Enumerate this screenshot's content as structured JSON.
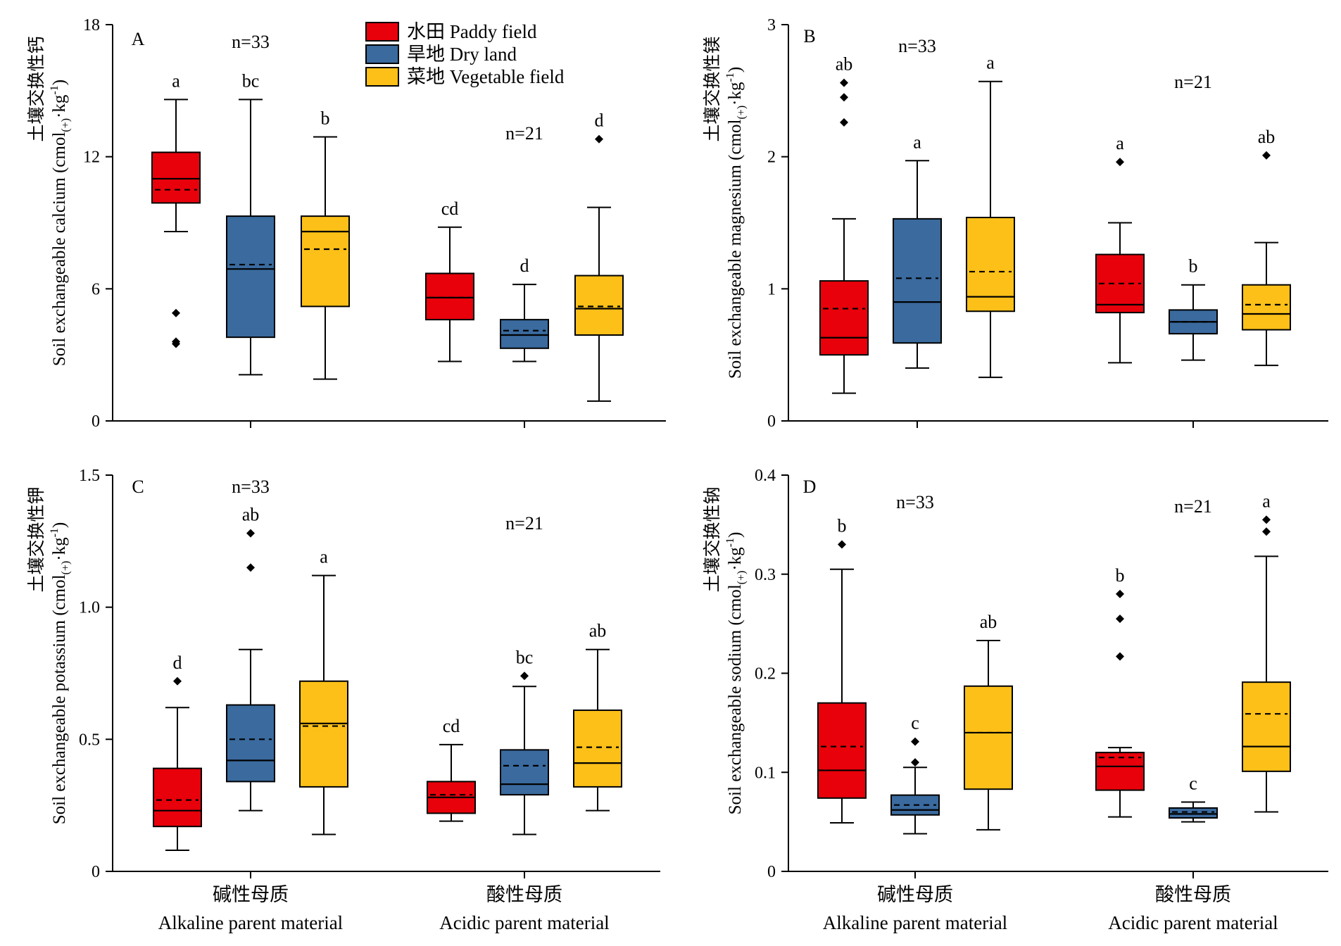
{
  "colors": {
    "paddy": "#e8000b",
    "dry": "#3a6a9e",
    "vegetable": "#fcc018"
  },
  "legend": [
    {
      "key": "paddy",
      "label": "水田 Paddy field"
    },
    {
      "key": "dry",
      "label": "旱地 Dry land"
    },
    {
      "key": "vegetable",
      "label": "菜地 Vegetable field"
    }
  ],
  "x_categories": [
    {
      "zh": "碱性母质",
      "en": "Alkaline parent material"
    },
    {
      "zh": "酸性母质",
      "en": "Acidic parent material"
    }
  ],
  "chart_data": [
    {
      "type": "box",
      "panel": "A",
      "ylabel_zh": "土壤交换性钙",
      "ylabel_en": "Soil exchangeable calcium",
      "ylim": [
        0,
        18
      ],
      "yticks": [
        "0",
        "6",
        "12",
        "18"
      ],
      "groups": [
        {
          "n_label": "n=33",
          "boxes": [
            {
              "series": "paddy",
              "min": 8.6,
              "q1": 9.9,
              "median": 11.0,
              "mean": 10.5,
              "q3": 12.2,
              "max": 14.6,
              "outliers": [
                4.9,
                3.6,
                3.5
              ],
              "letter": "a"
            },
            {
              "series": "dry",
              "min": 2.1,
              "q1": 3.8,
              "median": 6.9,
              "mean": 7.1,
              "q3": 9.3,
              "max": 14.6,
              "outliers": [],
              "letter": "bc"
            },
            {
              "series": "vegetable",
              "min": 1.9,
              "q1": 5.2,
              "median": 8.6,
              "mean": 7.8,
              "q3": 9.3,
              "max": 12.9,
              "outliers": [],
              "letter": "b"
            }
          ]
        },
        {
          "n_label": "n=21",
          "boxes": [
            {
              "series": "paddy",
              "min": 2.7,
              "q1": 4.6,
              "median": 5.6,
              "mean": 5.6,
              "q3": 6.7,
              "max": 8.8,
              "outliers": [],
              "letter": "cd"
            },
            {
              "series": "dry",
              "min": 2.7,
              "q1": 3.3,
              "median": 3.9,
              "mean": 4.1,
              "q3": 4.6,
              "max": 6.2,
              "outliers": [],
              "letter": "d"
            },
            {
              "series": "vegetable",
              "min": 0.9,
              "q1": 3.9,
              "median": 5.1,
              "mean": 5.2,
              "q3": 6.6,
              "max": 9.7,
              "outliers": [
                12.8
              ],
              "letter": "d"
            }
          ]
        }
      ]
    },
    {
      "type": "box",
      "panel": "B",
      "ylabel_zh": "土壤交换性镁",
      "ylabel_en": "Soil exchangeable magnesium",
      "ylim": [
        0,
        3
      ],
      "yticks": [
        "0",
        "1",
        "2",
        "3"
      ],
      "groups": [
        {
          "n_label": "n=33",
          "boxes": [
            {
              "series": "paddy",
              "min": 0.21,
              "q1": 0.5,
              "median": 0.63,
              "mean": 0.85,
              "q3": 1.06,
              "max": 1.53,
              "outliers": [
                2.26,
                2.45,
                2.56
              ],
              "letter": "ab"
            },
            {
              "series": "dry",
              "min": 0.4,
              "q1": 0.59,
              "median": 0.9,
              "mean": 1.08,
              "q3": 1.53,
              "max": 1.97,
              "outliers": [],
              "letter": "a"
            },
            {
              "series": "vegetable",
              "min": 0.33,
              "q1": 0.83,
              "median": 0.94,
              "mean": 1.13,
              "q3": 1.54,
              "max": 2.57,
              "outliers": [],
              "letter": "a"
            }
          ]
        },
        {
          "n_label": "n=21",
          "boxes": [
            {
              "series": "paddy",
              "min": 0.44,
              "q1": 0.82,
              "median": 0.88,
              "mean": 1.04,
              "q3": 1.26,
              "max": 1.5,
              "outliers": [
                1.96
              ],
              "letter": "a"
            },
            {
              "series": "dry",
              "min": 0.46,
              "q1": 0.66,
              "median": 0.75,
              "mean": 0.75,
              "q3": 0.84,
              "max": 1.03,
              "outliers": [],
              "letter": "b"
            },
            {
              "series": "vegetable",
              "min": 0.42,
              "q1": 0.69,
              "median": 0.81,
              "mean": 0.88,
              "q3": 1.03,
              "max": 1.35,
              "outliers": [
                2.01
              ],
              "letter": "ab"
            }
          ]
        }
      ]
    },
    {
      "type": "box",
      "panel": "C",
      "ylabel_zh": "土壤交换性钾",
      "ylabel_en": "Soil exchangeable potassium",
      "ylim": [
        0,
        1.5
      ],
      "yticks": [
        "0",
        "0.5",
        "1.0",
        "1.5"
      ],
      "groups": [
        {
          "n_label": "n=33",
          "boxes": [
            {
              "series": "paddy",
              "min": 0.08,
              "q1": 0.17,
              "median": 0.23,
              "mean": 0.27,
              "q3": 0.39,
              "max": 0.62,
              "outliers": [
                0.72
              ],
              "letter": "d"
            },
            {
              "series": "dry",
              "min": 0.23,
              "q1": 0.34,
              "median": 0.42,
              "mean": 0.5,
              "q3": 0.63,
              "max": 0.84,
              "outliers": [
                1.15,
                1.28
              ],
              "letter": "ab"
            },
            {
              "series": "vegetable",
              "min": 0.14,
              "q1": 0.32,
              "median": 0.56,
              "mean": 0.55,
              "q3": 0.72,
              "max": 1.12,
              "outliers": [],
              "letter": "a"
            }
          ]
        },
        {
          "n_label": "n=21",
          "boxes": [
            {
              "series": "paddy",
              "min": 0.19,
              "q1": 0.22,
              "median": 0.28,
              "mean": 0.29,
              "q3": 0.34,
              "max": 0.48,
              "outliers": [],
              "letter": "cd"
            },
            {
              "series": "dry",
              "min": 0.14,
              "q1": 0.29,
              "median": 0.33,
              "mean": 0.4,
              "q3": 0.46,
              "max": 0.7,
              "outliers": [
                0.74
              ],
              "letter": "bc"
            },
            {
              "series": "vegetable",
              "min": 0.23,
              "q1": 0.32,
              "median": 0.41,
              "mean": 0.47,
              "q3": 0.61,
              "max": 0.84,
              "outliers": [],
              "letter": "ab"
            }
          ]
        }
      ]
    },
    {
      "type": "box",
      "panel": "D",
      "ylabel_zh": "土壤交换性钠",
      "ylabel_en": "Soil exchangeable sodium",
      "ylim": [
        0,
        0.4
      ],
      "yticks": [
        "0",
        "0.1",
        "0.2",
        "0.3",
        "0.4"
      ],
      "groups": [
        {
          "n_label": "n=33",
          "boxes": [
            {
              "series": "paddy",
              "min": 0.049,
              "q1": 0.074,
              "median": 0.102,
              "mean": 0.126,
              "q3": 0.17,
              "max": 0.305,
              "outliers": [
                0.33
              ],
              "letter": "b"
            },
            {
              "series": "dry",
              "min": 0.038,
              "q1": 0.057,
              "median": 0.062,
              "mean": 0.067,
              "q3": 0.077,
              "max": 0.105,
              "outliers": [
                0.11,
                0.131
              ],
              "letter": "c"
            },
            {
              "series": "vegetable",
              "min": 0.042,
              "q1": 0.083,
              "median": 0.14,
              "mean": 0.14,
              "q3": 0.187,
              "max": 0.233,
              "outliers": [],
              "letter": "ab"
            }
          ]
        },
        {
          "n_label": "n=21",
          "boxes": [
            {
              "series": "paddy",
              "min": 0.055,
              "q1": 0.082,
              "median": 0.106,
              "mean": 0.115,
              "q3": 0.12,
              "max": 0.125,
              "outliers": [
                0.217,
                0.255,
                0.28
              ],
              "letter": "b"
            },
            {
              "series": "dry",
              "min": 0.05,
              "q1": 0.054,
              "median": 0.058,
              "mean": 0.06,
              "q3": 0.064,
              "max": 0.07,
              "outliers": [],
              "letter": "c"
            },
            {
              "series": "vegetable",
              "min": 0.06,
              "q1": 0.101,
              "median": 0.126,
              "mean": 0.159,
              "q3": 0.191,
              "max": 0.318,
              "outliers": [
                0.343,
                0.355
              ],
              "letter": "a"
            }
          ]
        }
      ]
    }
  ]
}
